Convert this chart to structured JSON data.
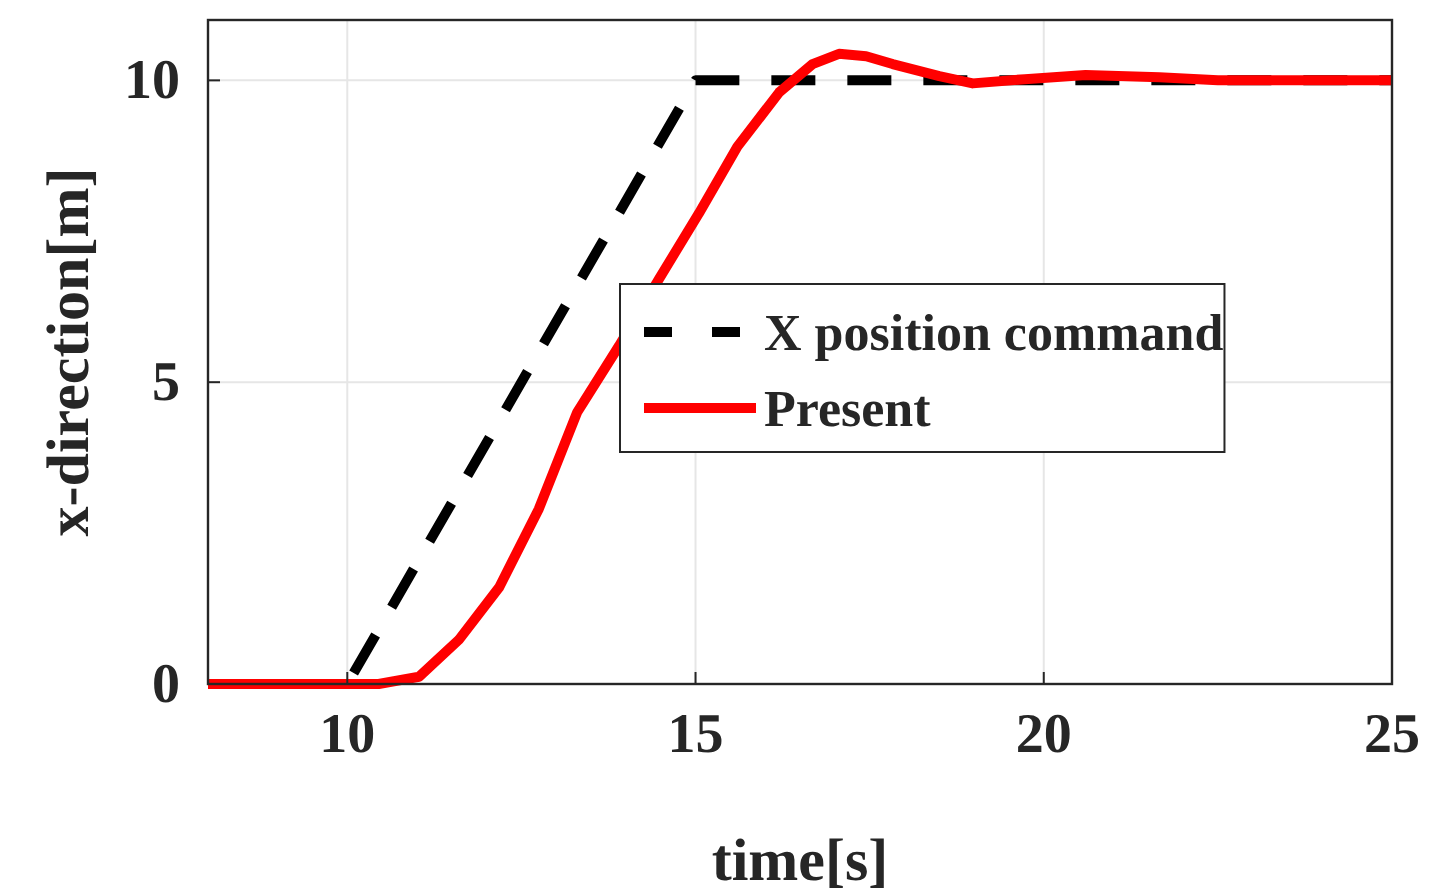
{
  "chart_data": {
    "type": "line",
    "xlabel": "time[s]",
    "ylabel": "x-direction[m]",
    "xlim": [
      8,
      25
    ],
    "ylim": [
      0,
      11
    ],
    "xticks": [
      10,
      15,
      20,
      25
    ],
    "yticks": [
      0,
      5,
      10
    ],
    "grid": true,
    "legend": "right",
    "series": [
      {
        "name": "X position command",
        "color": "#000000",
        "line_style": "dashed",
        "x": [
          8,
          10,
          15,
          25
        ],
        "values": [
          0,
          0,
          10,
          10
        ]
      },
      {
        "name": "Present",
        "color": "#ff0000",
        "line_style": "solid",
        "x": [
          8,
          10,
          10.45,
          11.03,
          11.6,
          12.18,
          12.75,
          13.3,
          13.9,
          14.47,
          15.05,
          15.6,
          16.2,
          16.68,
          17.06,
          17.45,
          17.83,
          18.5,
          18.98,
          19.73,
          20.6,
          21.66,
          22.5,
          25
        ],
        "values": [
          0,
          0,
          0,
          0.12,
          0.73,
          1.6,
          2.9,
          4.5,
          5.6,
          6.7,
          7.8,
          8.9,
          9.8,
          10.27,
          10.44,
          10.4,
          10.27,
          10.07,
          9.95,
          10.02,
          10.09,
          10.05,
          10,
          10
        ]
      }
    ]
  }
}
